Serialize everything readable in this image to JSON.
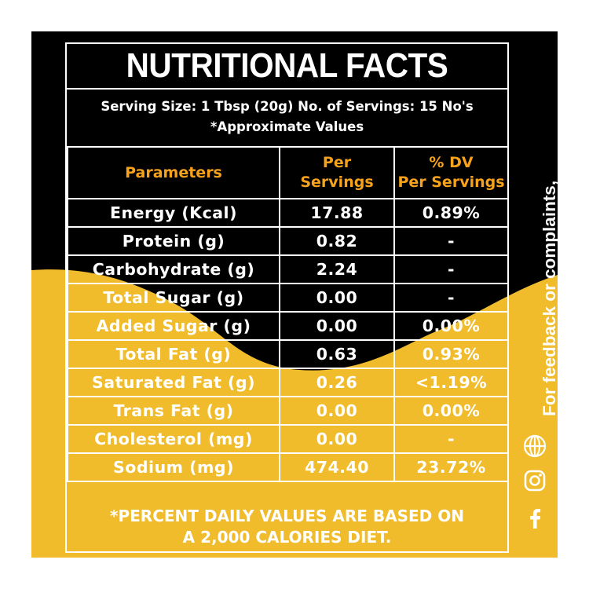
{
  "title": "NUTRITIONAL FACTS",
  "serving": {
    "line1": "Serving Size: 1 Tbsp (20g) No. of Servings: 15 No's",
    "line2": "*Approximate Values"
  },
  "table": {
    "headers": {
      "param": "Parameters",
      "per_l1": "Per",
      "per_l2": "Servings",
      "dv_l1": "% DV",
      "dv_l2": "Per Servings"
    },
    "rows": [
      {
        "param": "Energy (Kcal)",
        "per": "17.88",
        "dv": "0.89%"
      },
      {
        "param": "Protein (g)",
        "per": "0.82",
        "dv": "-"
      },
      {
        "param": "Carbohydrate (g)",
        "per": "2.24",
        "dv": "-"
      },
      {
        "param": "Total Sugar (g)",
        "per": "0.00",
        "dv": "-"
      },
      {
        "param": "Added Sugar (g)",
        "per": "0.00",
        "dv": "0.00%"
      },
      {
        "param": "Total Fat (g)",
        "per": "0.63",
        "dv": "0.93%"
      },
      {
        "param": "Saturated Fat (g)",
        "per": "0.26",
        "dv": "<1.19%"
      },
      {
        "param": "Trans Fat (g)",
        "per": "0.00",
        "dv": "0.00%"
      },
      {
        "param": "Cholesterol (mg)",
        "per": "0.00",
        "dv": "-"
      },
      {
        "param": "Sodium (mg)",
        "per": "474.40",
        "dv": "23.72%"
      }
    ]
  },
  "footnote": {
    "line1": "*PERCENT DAILY VALUES ARE BASED ON",
    "line2": "A 2,000 CALORIES DIET."
  },
  "side": {
    "text": "For feedback or complaints,",
    "icons": [
      "globe-icon",
      "instagram-icon",
      "facebook-icon"
    ]
  },
  "colors": {
    "black": "#000000",
    "yellow": "#f0bc2c",
    "header_orange": "#f7a21b",
    "text": "#ffffff"
  }
}
